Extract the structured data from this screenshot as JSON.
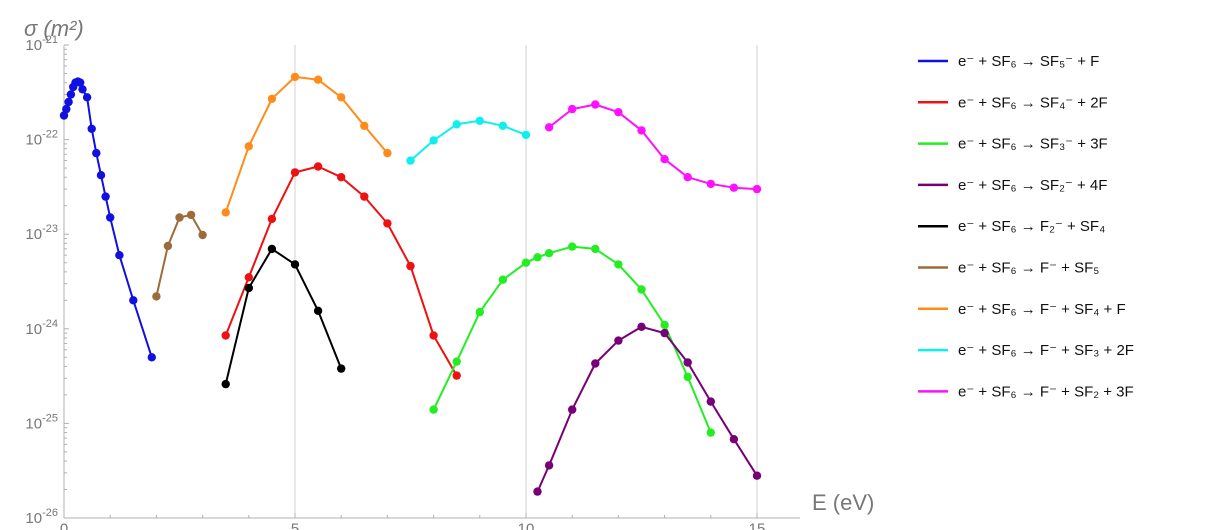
{
  "chart_data": {
    "type": "line",
    "title": "",
    "xlabel": "E (eV)",
    "ylabel": "σ (m²)",
    "xlim": [
      0,
      16
    ],
    "ylim": [
      1e-26,
      1e-21
    ],
    "yscale": "log",
    "x_ticks": [
      0,
      5,
      10,
      15
    ],
    "y_ticks": [
      1e-26,
      1e-25,
      1e-24,
      1e-23,
      1e-22,
      1e-21
    ],
    "y_tick_exponents": [
      "-26",
      "-25",
      "-24",
      "-23",
      "-22",
      "-21"
    ],
    "grid": "vertical lines at x ticks",
    "legend_position": "right",
    "series": [
      {
        "name": "e⁻ + SF₆ → SF₅⁻ + F",
        "color": "#1010e0",
        "x": [
          0.0,
          0.05,
          0.1,
          0.15,
          0.2,
          0.25,
          0.3,
          0.35,
          0.4,
          0.5,
          0.6,
          0.7,
          0.8,
          0.9,
          1.0,
          1.2,
          1.5,
          1.9
        ],
        "y": [
          1.8e-22,
          2.1e-22,
          2.5e-22,
          3e-22,
          3.6e-22,
          4e-22,
          4.1e-22,
          4e-22,
          3.4e-22,
          2.8e-22,
          1.3e-22,
          7.2e-23,
          4.2e-23,
          2.5e-23,
          1.5e-23,
          6e-24,
          2e-24,
          5e-25
        ]
      },
      {
        "name": "e⁻ + SF₆ → SF₄⁻ + 2F",
        "color": "#ee1111",
        "x": [
          3.5,
          4.0,
          4.5,
          5.0,
          5.5,
          6.0,
          6.5,
          7.0,
          7.5,
          8.0,
          8.5
        ],
        "y": [
          8.5e-25,
          3.5e-24,
          1.45e-23,
          4.5e-23,
          5.2e-23,
          4e-23,
          2.5e-23,
          1.3e-23,
          4.6e-24,
          8.5e-25,
          3.2e-25
        ]
      },
      {
        "name": "e⁻ + SF₆ → SF₃⁻ + 3F",
        "color": "#22ee22",
        "x": [
          8.0,
          8.5,
          9.0,
          9.5,
          10.0,
          10.25,
          10.5,
          11.0,
          11.5,
          12.0,
          12.5,
          13.0,
          13.5,
          14.0
        ],
        "y": [
          1.4e-25,
          4.5e-25,
          1.5e-24,
          3.3e-24,
          5e-24,
          5.7e-24,
          6.3e-24,
          7.4e-24,
          7e-24,
          4.8e-24,
          2.6e-24,
          1.1e-24,
          3.1e-25,
          8e-26
        ]
      },
      {
        "name": "e⁻ + SF₆ → SF₂⁻ + 4F",
        "color": "#770077",
        "x": [
          10.25,
          10.5,
          11.0,
          11.5,
          12.0,
          12.5,
          13.0,
          13.5,
          14.0,
          14.5,
          15.0
        ],
        "y": [
          1.9e-26,
          3.6e-26,
          1.4e-25,
          4.3e-25,
          7.5e-25,
          1.05e-24,
          9e-25,
          4.4e-25,
          1.7e-25,
          6.8e-26,
          2.8e-26
        ]
      },
      {
        "name": "e⁻ + SF₆ → F₂⁻ + SF₄",
        "color": "#000000",
        "x": [
          3.5,
          4.0,
          4.5,
          5.0,
          5.5,
          6.0
        ],
        "y": [
          2.6e-25,
          2.7e-24,
          7e-24,
          4.8e-24,
          1.55e-24,
          3.8e-25
        ]
      },
      {
        "name": "e⁻ + SF₆ → F⁻ + SF₅",
        "color": "#9b6b3a",
        "x": [
          2.0,
          2.25,
          2.5,
          2.75,
          3.0
        ],
        "y": [
          2.2e-24,
          7.5e-24,
          1.5e-23,
          1.6e-23,
          9.8e-24
        ]
      },
      {
        "name": "e⁻ + SF₆ → F⁻ + SF₄ + F",
        "color": "#ff8c1a",
        "x": [
          3.5,
          4.0,
          4.5,
          5.0,
          5.5,
          6.0,
          6.5,
          7.0
        ],
        "y": [
          1.7e-23,
          8.5e-23,
          2.7e-22,
          4.6e-22,
          4.3e-22,
          2.8e-22,
          1.4e-22,
          7.2e-23
        ]
      },
      {
        "name": "e⁻ + SF₆ → F⁻ + SF₃ + 2F",
        "color": "#11eeee",
        "x": [
          7.5,
          8.0,
          8.5,
          9.0,
          9.5,
          10.0
        ],
        "y": [
          6e-23,
          9.8e-23,
          1.45e-22,
          1.58e-22,
          1.4e-22,
          1.12e-22
        ]
      },
      {
        "name": "e⁻ + SF₆ → F⁻ + SF₂ + 3F",
        "color": "#ff11ff",
        "x": [
          10.5,
          11.0,
          11.5,
          12.0,
          12.5,
          13.0,
          13.5,
          14.0,
          14.5,
          15.0
        ],
        "y": [
          1.35e-22,
          2.1e-22,
          2.35e-22,
          1.95e-22,
          1.25e-22,
          6.2e-23,
          4e-23,
          3.4e-23,
          3.1e-23,
          3e-23
        ]
      }
    ]
  }
}
